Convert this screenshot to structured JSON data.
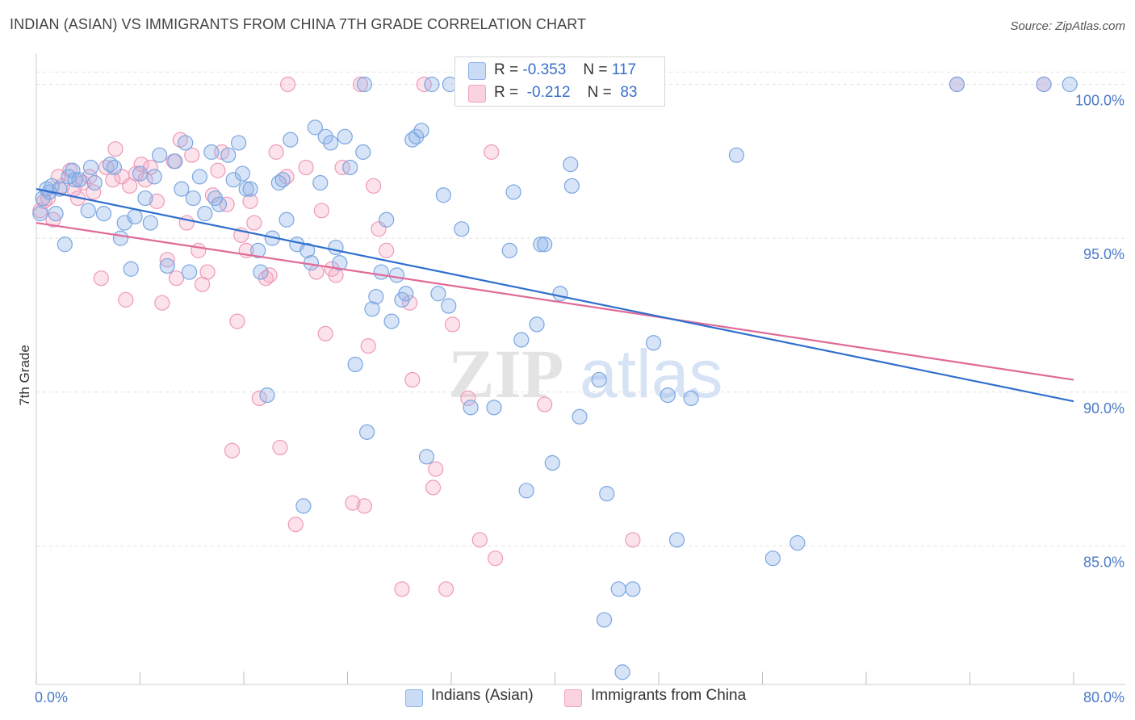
{
  "header": {
    "title": "INDIAN (ASIAN) VS IMMIGRANTS FROM CHINA 7TH GRADE CORRELATION CHART",
    "source": "Source: ZipAtlas.com"
  },
  "watermark": {
    "zip": "ZIP",
    "atlas": "atlas"
  },
  "legend_top": {
    "rows": [
      {
        "r_label": "R =",
        "r_value": "-0.353",
        "n_label": "N =",
        "n_value": "117",
        "color": "#a8c6ef"
      },
      {
        "r_label": "R =",
        "r_value": "-0.212",
        "n_label": "N =",
        "n_value": "83",
        "color": "#f5b3c8"
      }
    ]
  },
  "bottom_legend": {
    "items": [
      {
        "label": "Indians (Asian)",
        "color": "#a8c6ef"
      },
      {
        "label": "Immigrants from China",
        "color": "#f5b3c8"
      }
    ]
  },
  "colors": {
    "blue_fill": "rgba(140,178,232,0.35)",
    "blue_stroke": "#7aa6e0",
    "blue_line": "#2f6fcc",
    "pink_fill": "rgba(244,160,188,0.30)",
    "pink_stroke": "#ee9ab8",
    "pink_line": "#e06a98",
    "tick_label": "#4a7ac7",
    "grid": "#e2e2e2"
  },
  "chart_data": {
    "type": "scatter",
    "title": "INDIAN (ASIAN) VS IMMIGRANTS FROM CHINA 7TH GRADE CORRELATION CHART",
    "xlabel": "",
    "ylabel": "7th Grade",
    "xlim": [
      0,
      80
    ],
    "ylim": [
      80.5,
      100.8
    ],
    "x_tick_labels": [
      {
        "value": 0,
        "label": "0.0%"
      },
      {
        "value": 80,
        "label": "80.0%"
      }
    ],
    "y_tick_labels": [
      {
        "value": 100,
        "label": "100.0%"
      },
      {
        "value": 95,
        "label": "95.0%"
      },
      {
        "value": 90,
        "label": "90.0%"
      },
      {
        "value": 85,
        "label": "85.0%"
      }
    ],
    "grid": true,
    "legend_position": "top-center",
    "series": [
      {
        "name": "Indians (Asian)",
        "trend": {
          "x": [
            0,
            80
          ],
          "y": [
            96.6,
            89.7
          ]
        },
        "points": [
          [
            0.5,
            96.3
          ],
          [
            0.8,
            96.6
          ],
          [
            1.0,
            96.5
          ],
          [
            1.2,
            96.7
          ],
          [
            1.5,
            95.8
          ],
          [
            1.8,
            96.6
          ],
          [
            2.2,
            94.8
          ],
          [
            2.5,
            97.0
          ],
          [
            2.8,
            97.2
          ],
          [
            3.0,
            96.9
          ],
          [
            3.3,
            96.9
          ],
          [
            4.0,
            95.9
          ],
          [
            4.2,
            97.3
          ],
          [
            4.5,
            96.8
          ],
          [
            5.2,
            95.8
          ],
          [
            5.7,
            97.4
          ],
          [
            6.0,
            97.3
          ],
          [
            6.5,
            95.0
          ],
          [
            6.8,
            95.5
          ],
          [
            7.3,
            94.0
          ],
          [
            7.6,
            95.7
          ],
          [
            8.0,
            97.1
          ],
          [
            8.4,
            96.3
          ],
          [
            8.8,
            95.5
          ],
          [
            9.1,
            97.0
          ],
          [
            9.5,
            97.7
          ],
          [
            10.1,
            94.1
          ],
          [
            10.7,
            97.5
          ],
          [
            11.2,
            96.6
          ],
          [
            11.5,
            98.1
          ],
          [
            11.8,
            93.9
          ],
          [
            12.1,
            96.3
          ],
          [
            12.6,
            97.0
          ],
          [
            13.0,
            95.8
          ],
          [
            13.5,
            97.8
          ],
          [
            13.8,
            96.3
          ],
          [
            14.1,
            96.1
          ],
          [
            14.8,
            97.7
          ],
          [
            15.2,
            96.9
          ],
          [
            15.6,
            98.1
          ],
          [
            15.9,
            97.1
          ],
          [
            16.2,
            96.6
          ],
          [
            16.5,
            96.6
          ],
          [
            17.1,
            94.6
          ],
          [
            17.3,
            93.9
          ],
          [
            17.8,
            89.9
          ],
          [
            18.2,
            95.0
          ],
          [
            18.7,
            96.8
          ],
          [
            19.0,
            96.9
          ],
          [
            19.3,
            95.6
          ],
          [
            19.6,
            98.2
          ],
          [
            20.1,
            94.8
          ],
          [
            20.6,
            86.3
          ],
          [
            20.9,
            94.6
          ],
          [
            21.2,
            94.2
          ],
          [
            21.5,
            98.6
          ],
          [
            21.9,
            96.8
          ],
          [
            22.3,
            98.3
          ],
          [
            22.7,
            98.1
          ],
          [
            23.1,
            94.7
          ],
          [
            23.4,
            94.2
          ],
          [
            23.8,
            98.3
          ],
          [
            24.2,
            97.3
          ],
          [
            24.6,
            90.9
          ],
          [
            25.2,
            97.8
          ],
          [
            25.5,
            88.7
          ],
          [
            25.9,
            92.7
          ],
          [
            26.2,
            93.1
          ],
          [
            26.6,
            93.9
          ],
          [
            27.0,
            95.6
          ],
          [
            27.4,
            92.3
          ],
          [
            27.8,
            93.8
          ],
          [
            28.2,
            93.0
          ],
          [
            28.5,
            93.2
          ],
          [
            29.0,
            98.2
          ],
          [
            29.3,
            98.3
          ],
          [
            29.7,
            98.5
          ],
          [
            30.1,
            87.9
          ],
          [
            30.5,
            100.0
          ],
          [
            31.0,
            93.2
          ],
          [
            31.4,
            96.4
          ],
          [
            31.8,
            92.8
          ],
          [
            32.8,
            95.3
          ],
          [
            33.5,
            89.5
          ],
          [
            35.3,
            89.5
          ],
          [
            36.5,
            94.6
          ],
          [
            36.8,
            96.5
          ],
          [
            37.4,
            91.7
          ],
          [
            37.8,
            86.8
          ],
          [
            38.6,
            92.2
          ],
          [
            38.9,
            94.8
          ],
          [
            39.2,
            94.8
          ],
          [
            39.8,
            87.7
          ],
          [
            40.4,
            93.2
          ],
          [
            41.2,
            97.4
          ],
          [
            41.3,
            96.7
          ],
          [
            41.9,
            89.2
          ],
          [
            43.4,
            90.4
          ],
          [
            43.8,
            82.6
          ],
          [
            44.0,
            86.7
          ],
          [
            44.9,
            83.6
          ],
          [
            45.2,
            80.9
          ],
          [
            46.0,
            83.6
          ],
          [
            47.6,
            91.6
          ],
          [
            47.9,
            100.0
          ],
          [
            48.7,
            89.9
          ],
          [
            49.4,
            85.2
          ],
          [
            50.5,
            89.8
          ],
          [
            54.0,
            97.7
          ],
          [
            56.8,
            84.6
          ],
          [
            58.7,
            85.1
          ],
          [
            71.0,
            100.0
          ],
          [
            77.7,
            100.0
          ],
          [
            79.7,
            100.0
          ],
          [
            25.3,
            100.0
          ],
          [
            31.9,
            100.0
          ],
          [
            0.3,
            95.8
          ]
        ]
      },
      {
        "name": "Immigrants from China",
        "trend": {
          "x": [
            0,
            80
          ],
          "y": [
            95.5,
            90.4
          ]
        },
        "points": [
          [
            0.3,
            95.9
          ],
          [
            0.6,
            96.2
          ],
          [
            0.9,
            96.3
          ],
          [
            1.3,
            95.6
          ],
          [
            1.7,
            97.0
          ],
          [
            2.0,
            96.7
          ],
          [
            2.6,
            97.2
          ],
          [
            2.9,
            96.6
          ],
          [
            3.2,
            96.3
          ],
          [
            3.6,
            96.8
          ],
          [
            4.1,
            97.0
          ],
          [
            4.4,
            96.5
          ],
          [
            5.0,
            93.7
          ],
          [
            5.4,
            97.3
          ],
          [
            5.9,
            96.9
          ],
          [
            6.1,
            97.9
          ],
          [
            6.6,
            97.0
          ],
          [
            6.9,
            93.0
          ],
          [
            7.2,
            96.7
          ],
          [
            7.7,
            97.1
          ],
          [
            8.1,
            97.4
          ],
          [
            8.4,
            96.9
          ],
          [
            8.8,
            97.3
          ],
          [
            9.3,
            96.2
          ],
          [
            9.7,
            92.9
          ],
          [
            10.1,
            94.3
          ],
          [
            10.6,
            97.5
          ],
          [
            10.8,
            93.7
          ],
          [
            11.1,
            98.2
          ],
          [
            11.6,
            95.5
          ],
          [
            12.0,
            97.7
          ],
          [
            12.5,
            94.6
          ],
          [
            12.8,
            93.5
          ],
          [
            13.2,
            93.9
          ],
          [
            13.6,
            96.4
          ],
          [
            14.0,
            97.2
          ],
          [
            14.3,
            97.8
          ],
          [
            14.7,
            96.1
          ],
          [
            15.1,
            88.1
          ],
          [
            15.5,
            92.3
          ],
          [
            15.8,
            95.1
          ],
          [
            16.2,
            94.6
          ],
          [
            16.5,
            96.2
          ],
          [
            16.8,
            95.5
          ],
          [
            17.2,
            89.8
          ],
          [
            17.7,
            93.7
          ],
          [
            18.0,
            93.8
          ],
          [
            18.5,
            97.8
          ],
          [
            18.8,
            88.2
          ],
          [
            19.3,
            97.0
          ],
          [
            20.0,
            85.7
          ],
          [
            20.8,
            97.3
          ],
          [
            21.6,
            93.9
          ],
          [
            22.0,
            95.9
          ],
          [
            22.3,
            91.9
          ],
          [
            22.8,
            94.0
          ],
          [
            23.1,
            93.8
          ],
          [
            23.6,
            97.3
          ],
          [
            24.4,
            86.4
          ],
          [
            25.0,
            100.0
          ],
          [
            25.3,
            86.3
          ],
          [
            25.6,
            91.5
          ],
          [
            26.0,
            96.7
          ],
          [
            26.4,
            95.3
          ],
          [
            27.0,
            94.6
          ],
          [
            28.2,
            83.6
          ],
          [
            28.8,
            92.9
          ],
          [
            29.0,
            90.4
          ],
          [
            29.9,
            100.0
          ],
          [
            30.6,
            86.9
          ],
          [
            30.8,
            87.5
          ],
          [
            31.6,
            83.6
          ],
          [
            32.1,
            92.2
          ],
          [
            33.3,
            89.8
          ],
          [
            34.2,
            85.2
          ],
          [
            35.1,
            97.8
          ],
          [
            35.4,
            84.6
          ],
          [
            36.0,
            100.0
          ],
          [
            39.2,
            89.6
          ],
          [
            46.0,
            85.2
          ],
          [
            71.0,
            100.0
          ],
          [
            77.7,
            100.0
          ],
          [
            19.4,
            100.0
          ]
        ]
      }
    ]
  }
}
